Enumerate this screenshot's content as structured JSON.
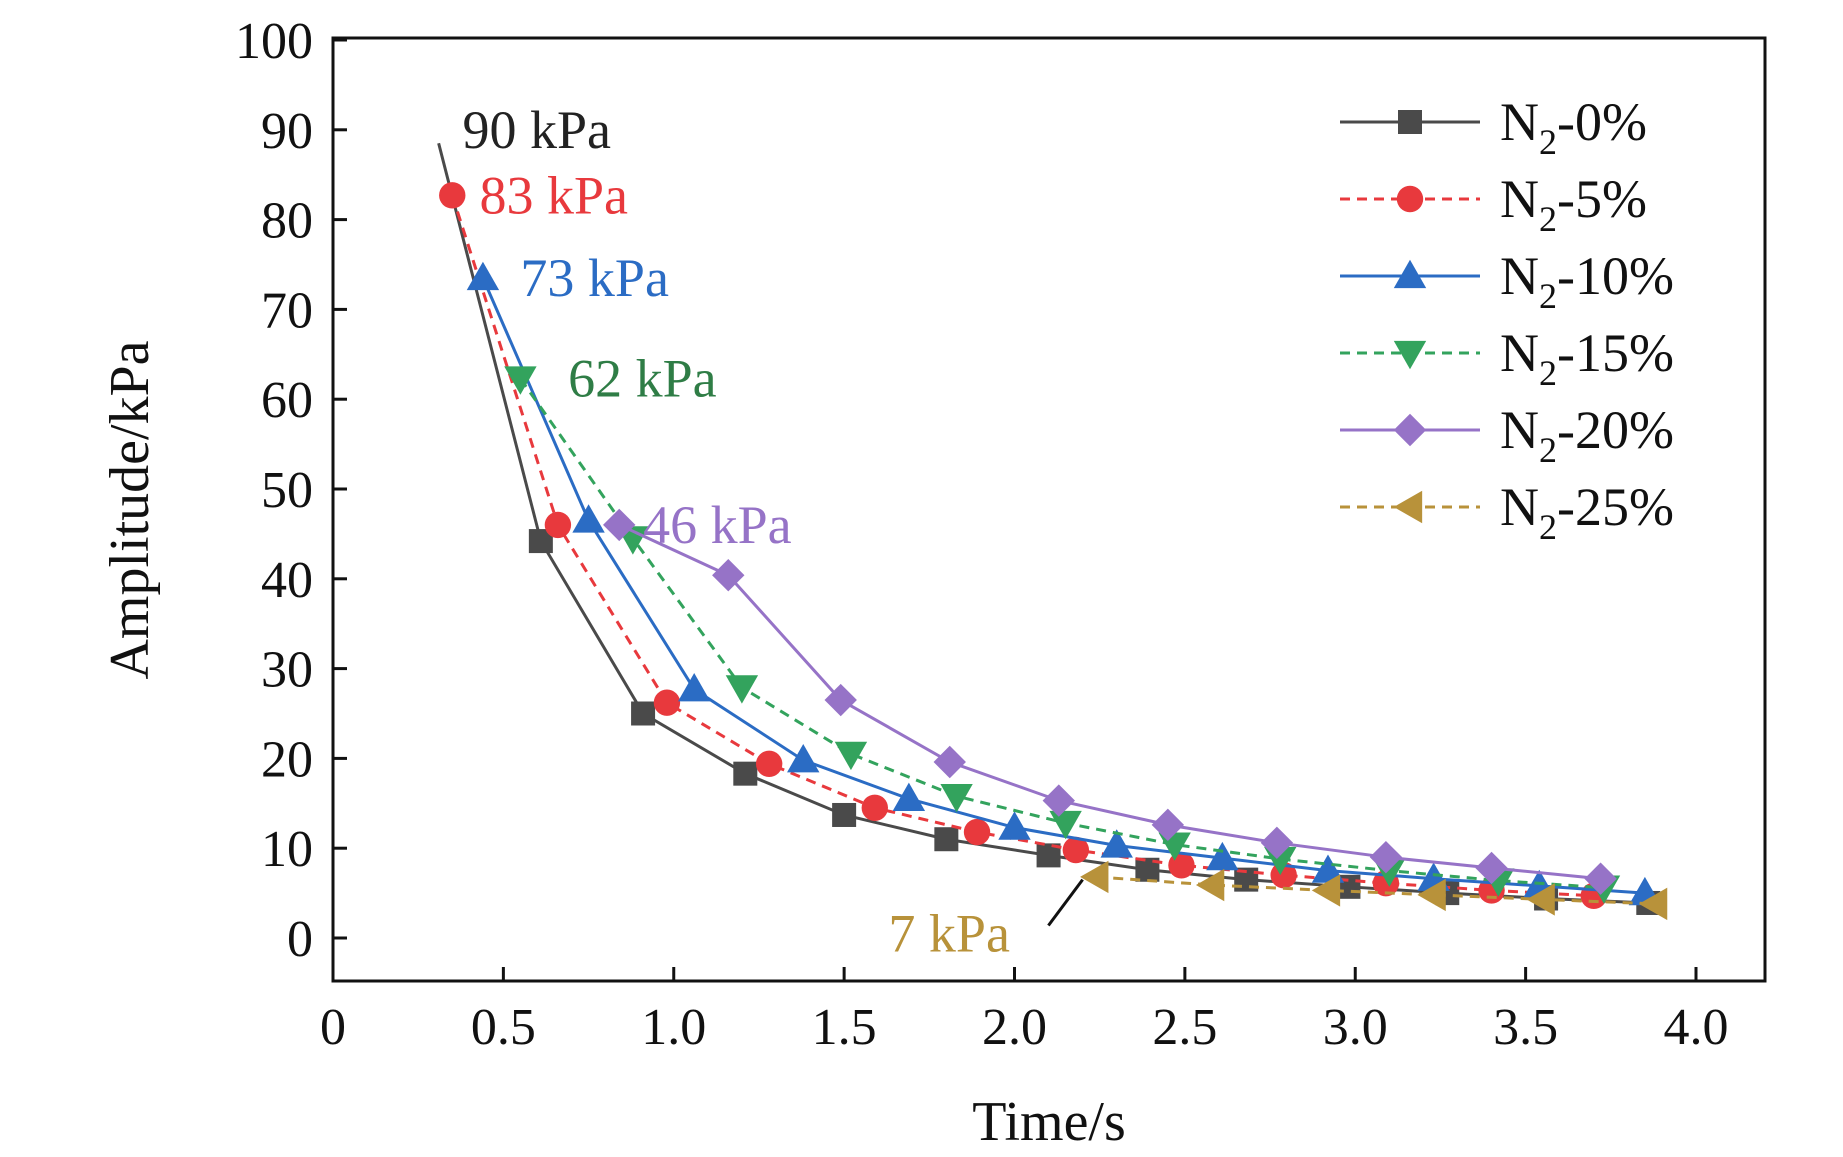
{
  "chart_data": {
    "type": "line",
    "title": "",
    "xlabel": "Time/s",
    "ylabel": "Amplitude/kPa",
    "xlim": [
      0,
      4.0
    ],
    "ylim": [
      0,
      100
    ],
    "x_ticks": [
      0,
      0.5,
      1.0,
      1.5,
      2.0,
      2.5,
      3.0,
      3.5,
      4.0
    ],
    "x_tick_labels": [
      "0",
      "0.5",
      "1.0",
      "1.5",
      "2.0",
      "2.5",
      "3.0",
      "3.5",
      "4.0"
    ],
    "y_ticks": [
      0,
      10,
      20,
      30,
      40,
      50,
      60,
      70,
      80,
      90,
      100
    ],
    "y_tick_labels": [
      "0",
      "10",
      "20",
      "30",
      "40",
      "50",
      "60",
      "70",
      "80",
      "90",
      "100"
    ],
    "grid": false,
    "legend_position": "top-right",
    "series": [
      {
        "name": "N2-0%",
        "legend_main": "N",
        "legend_sub": "2",
        "legend_suffix": "-0%",
        "color": "#4a4a4a",
        "dash": "solid",
        "marker": "square",
        "curve_start": [
          0.31,
          88.5
        ],
        "x": [
          0.61,
          0.91,
          1.21,
          1.5,
          1.8,
          2.1,
          2.39,
          2.68,
          2.98,
          3.27,
          3.56,
          3.86
        ],
        "y": [
          44.2,
          25.0,
          18.3,
          13.7,
          11.0,
          9.2,
          7.6,
          6.5,
          5.7,
          5.0,
          4.4,
          3.9
        ]
      },
      {
        "name": "N2-5%",
        "legend_main": "N",
        "legend_sub": "2",
        "legend_suffix": "-5%",
        "color": "#e8393d",
        "dash": "dashed",
        "marker": "circle",
        "x": [
          0.35,
          0.66,
          0.98,
          1.28,
          1.59,
          1.89,
          2.18,
          2.49,
          2.79,
          3.09,
          3.4,
          3.7
        ],
        "y": [
          82.7,
          46.0,
          26.2,
          19.4,
          14.5,
          11.8,
          9.8,
          8.1,
          7.0,
          6.1,
          5.3,
          4.7
        ]
      },
      {
        "name": "N2-10%",
        "legend_main": "N",
        "legend_sub": "2",
        "legend_suffix": "-10%",
        "color": "#2b6cc4",
        "dash": "solid",
        "marker": "triangle-up",
        "x": [
          0.44,
          0.75,
          1.06,
          1.38,
          1.69,
          2.0,
          2.3,
          2.61,
          2.92,
          3.23,
          3.54,
          3.85
        ],
        "y": [
          73.5,
          46.5,
          27.7,
          19.8,
          15.5,
          12.3,
          10.3,
          8.9,
          7.5,
          6.6,
          5.8,
          5.0
        ]
      },
      {
        "name": "N2-15%",
        "legend_main": "N",
        "legend_sub": "2",
        "legend_suffix": "-15%",
        "color": "#33a35d",
        "dash": "dashed",
        "marker": "triangle-down",
        "x": [
          0.55,
          0.88,
          1.2,
          1.52,
          1.83,
          2.15,
          2.47,
          2.78,
          3.1,
          3.42,
          3.73
        ],
        "y": [
          62.3,
          44.5,
          27.9,
          20.5,
          15.8,
          12.8,
          10.4,
          8.8,
          7.5,
          6.4,
          5.6
        ]
      },
      {
        "name": "N2-20%",
        "legend_main": "N",
        "legend_sub": "2",
        "legend_suffix": "-20%",
        "color": "#9673c7",
        "dash": "solid",
        "marker": "diamond",
        "x": [
          0.84,
          1.16,
          1.49,
          1.81,
          2.13,
          2.45,
          2.77,
          3.09,
          3.4,
          3.72
        ],
        "y": [
          46.0,
          40.4,
          26.5,
          19.6,
          15.3,
          12.6,
          10.6,
          9.0,
          7.8,
          6.6
        ]
      },
      {
        "name": "N2-25%",
        "legend_main": "N",
        "legend_sub": "2",
        "legend_suffix": "-25%",
        "color": "#b8923a",
        "dash": "dashed",
        "marker": "triangle-left",
        "x": [
          2.24,
          2.58,
          2.92,
          3.23,
          3.55,
          3.88
        ],
        "y": [
          6.8,
          5.9,
          5.3,
          4.8,
          4.3,
          3.8
        ]
      }
    ],
    "annotations": [
      {
        "text": "90 kPa",
        "color": "#222222",
        "at": [
          0.38,
          90.0
        ]
      },
      {
        "text": "83 kPa",
        "color": "#e8393d",
        "at": [
          0.43,
          82.7
        ]
      },
      {
        "text": "73 kPa",
        "color": "#2b6cc4",
        "at": [
          0.55,
          73.5
        ]
      },
      {
        "text": "62 kPa",
        "color": "#2f7d46",
        "at": [
          0.69,
          62.3
        ]
      },
      {
        "text": "46 kPa",
        "color": "#9673c7",
        "at": [
          0.91,
          46.0
        ]
      },
      {
        "text": "7 kPa",
        "color": "#b8923a",
        "at": [
          1.63,
          0.5
        ],
        "pointer_to": [
          2.2,
          6.5
        ]
      }
    ]
  }
}
